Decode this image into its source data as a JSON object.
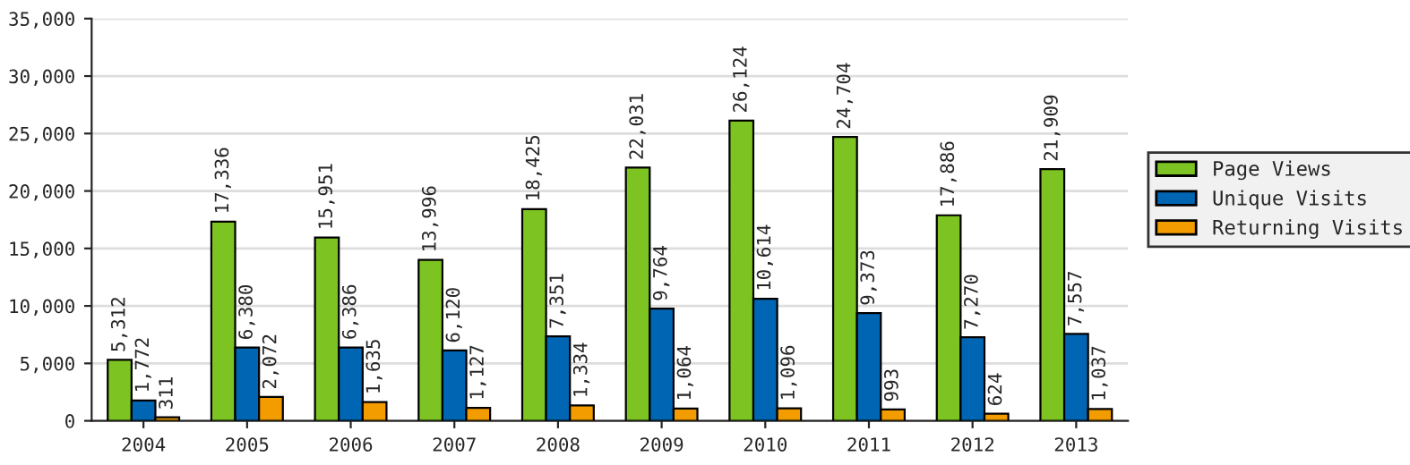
{
  "chart_data": {
    "type": "bar",
    "categories": [
      "2004",
      "2005",
      "2006",
      "2007",
      "2008",
      "2009",
      "2010",
      "2011",
      "2012",
      "2013"
    ],
    "series": [
      {
        "name": "Page Views",
        "color": "#7dc423",
        "values": [
          5312,
          17336,
          15951,
          13996,
          18425,
          22031,
          26124,
          24704,
          17886,
          21909
        ],
        "value_labels": [
          "5,312",
          "17,336",
          "15,951",
          "13,996",
          "18,425",
          "22,031",
          "26,124",
          "24,704",
          "17,886",
          "21,909"
        ]
      },
      {
        "name": "Unique Visits",
        "color": "#0066b3",
        "values": [
          1772,
          6380,
          6386,
          6120,
          7351,
          9764,
          10614,
          9373,
          7270,
          7557
        ],
        "value_labels": [
          "1,772",
          "6,380",
          "6,386",
          "6,120",
          "7,351",
          "9,764",
          "10,614",
          "9,373",
          "7,270",
          "7,557"
        ]
      },
      {
        "name": "Returning Visits",
        "color": "#f29c00",
        "values": [
          311,
          2072,
          1635,
          1127,
          1334,
          1064,
          1096,
          993,
          624,
          1037
        ],
        "value_labels": [
          "311",
          "2,072",
          "1,635",
          "1,127",
          "1,334",
          "1,064",
          "1,096",
          "993",
          "624",
          "1,037"
        ]
      }
    ],
    "ylim": [
      0,
      35000
    ],
    "yticks": [
      {
        "value": 0,
        "label": "0"
      },
      {
        "value": 5000,
        "label": "5,000"
      },
      {
        "value": 10000,
        "label": "10,000"
      },
      {
        "value": 15000,
        "label": "15,000"
      },
      {
        "value": 20000,
        "label": "20,000"
      },
      {
        "value": 25000,
        "label": "25,000"
      },
      {
        "value": 30000,
        "label": "30,000"
      },
      {
        "value": 35000,
        "label": "35,000"
      }
    ],
    "grid": "y",
    "legend": "right"
  }
}
